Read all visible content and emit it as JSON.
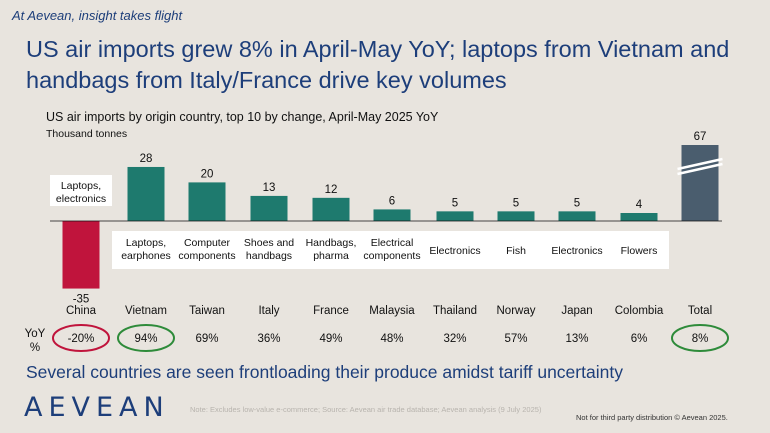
{
  "header": {
    "tagline": "At Aevean, insight takes flight",
    "headline": "US air imports grew 8% in April-May YoY; laptops from Vietnam and handbags from Italy/France drive key volumes"
  },
  "chart_data": {
    "type": "bar",
    "title": "US air imports by origin country, top 10 by change, April-May 2025 YoY",
    "unit": "Thousand tonnes",
    "categories": [
      "China",
      "Vietnam",
      "Taiwan",
      "Italy",
      "France",
      "Malaysia",
      "Thailand",
      "Norway",
      "Japan",
      "Colombia",
      "Total"
    ],
    "values": [
      -35,
      28,
      20,
      13,
      12,
      6,
      5,
      5,
      5,
      4,
      67
    ],
    "value_labels": [
      "-35",
      "28",
      "20",
      "13",
      "12",
      "6",
      "5",
      "5",
      "5",
      "4",
      "67"
    ],
    "products": [
      "Laptops, electronics",
      "Laptops, earphones",
      "Computer components",
      "Shoes and handbags",
      "Handbags, pharma",
      "Electrical components",
      "Electronics",
      "Fish",
      "Electronics",
      "Flowers",
      ""
    ],
    "yoy_label": "YoY %",
    "yoy": [
      "-20%",
      "94%",
      "69%",
      "36%",
      "49%",
      "48%",
      "32%",
      "57%",
      "13%",
      "6%",
      "8%"
    ],
    "highlighted_yoy": {
      "China": "red",
      "Vietnam": "green",
      "Total": "green"
    },
    "colors": {
      "negative": "#c0143c",
      "positive": "#1e7a6e",
      "total": "#4a5d6e",
      "circle_red": "#c0143c",
      "circle_green": "#2e8b3a"
    }
  },
  "footer": {
    "takeaway": "Several countries are seen frontloading their produce amidst tariff uncertainty",
    "logo": "AEVEAN",
    "footnote": "Note: Excludes low-value e-commerce; Source: Aevean air trade database; Aevean analysis (9 July 2025)",
    "copyright": "Not for third party distribution © Aevean 2025."
  }
}
